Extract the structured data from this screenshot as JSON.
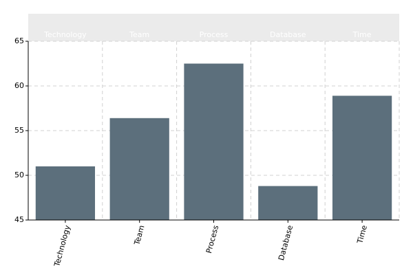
{
  "chart_data": {
    "type": "bar",
    "categories": [
      "Technology",
      "Team",
      "Process",
      "Database",
      "Time"
    ],
    "values": [
      51.0,
      56.4,
      62.5,
      48.8,
      58.9
    ],
    "color": "#5c6f7c",
    "ylim": [
      45,
      65
    ],
    "yticks": [
      45,
      50,
      55,
      60,
      65
    ],
    "grid": true
  }
}
